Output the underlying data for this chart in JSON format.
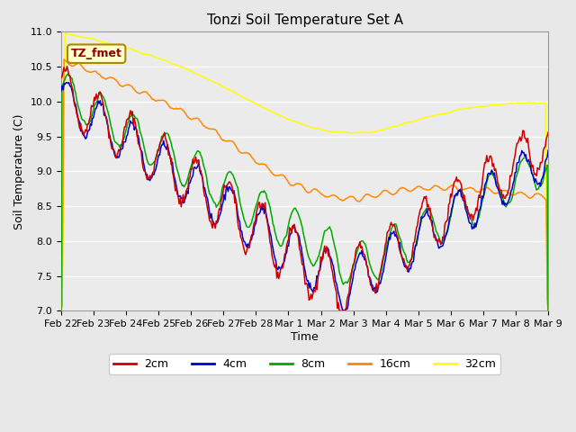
{
  "title": "Tonzi Soil Temperature Set A",
  "xlabel": "Time",
  "ylabel": "Soil Temperature (C)",
  "ylim": [
    7.0,
    11.0
  ],
  "annotation": "TZ_fmet",
  "series_colors": [
    "#cc0000",
    "#0000cc",
    "#00aa00",
    "#ff8800",
    "#ffff00"
  ],
  "series_labels": [
    "2cm",
    "4cm",
    "8cm",
    "16cm",
    "32cm"
  ],
  "background_color": "#e8e8e8",
  "plot_bg_color": "#ebebeb",
  "n_points": 500,
  "xtick_positions": [
    0,
    1,
    2,
    3,
    4,
    5,
    6,
    7,
    8,
    9,
    10,
    11,
    12,
    13,
    14,
    15
  ],
  "xtick_labels": [
    "Feb 22",
    "Feb 23",
    "Feb 24",
    "Feb 25",
    "Feb 26",
    "Feb 27",
    "Feb 28",
    "Mar 1",
    "Mar 2",
    "Mar 3",
    "Mar 4",
    "Mar 5",
    "Mar 6",
    "Mar 7",
    "Mar 8",
    "Mar 9"
  ]
}
